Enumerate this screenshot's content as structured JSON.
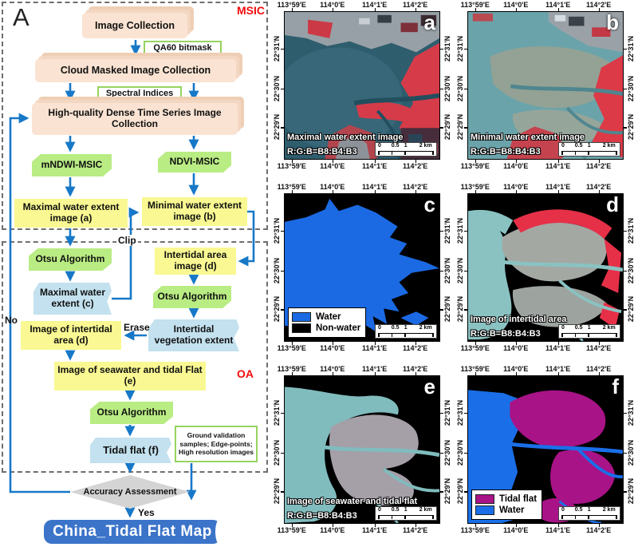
{
  "figure": {
    "panel_label": "A",
    "msic_label": "MSIC",
    "oa_label": "OA"
  },
  "flowchart": {
    "nodes": {
      "image_collection": "Image Collection",
      "qa60": "QA60 bitmask",
      "cloud_masked": "Cloud Masked Image Collection",
      "spectral_indices": "Spectral Indices",
      "high_quality": "High-quality Dense Time Series Image Collection",
      "mndwi": "mNDWI-MSIC",
      "ndvi": "NDVI-MSIC",
      "max_water_image": "Maximal water extent image (a)",
      "min_water_image": "Minimal water extent image (b)",
      "otsu1": "Otsu Algorithm",
      "intertidal_area_image": "Intertidal area image (d)",
      "max_water_extent": "Maximal water extent (c)",
      "otsu2": "Otsu Algorithm",
      "image_intertidal_area": "Image of intertidal area (d)",
      "intertidal_veg": "Intertidal vegetation extent",
      "seawater_tidalflat": "Image of seawater and tidal Flat (e)",
      "otsu3": "Otsu Algorithm",
      "tidal_flat": "Tidal flat (f)",
      "ground_validation": "Ground validation samples; Edge-points; High resolution images",
      "accuracy": "Accuracy Assessment",
      "final_map": "China_Tidal Flat Map"
    },
    "edge_labels": {
      "clip": "Clip",
      "erase": "Erase",
      "no": "No",
      "yes": "Yes"
    }
  },
  "axes": {
    "lon": [
      "113°59'E",
      "114°0'E",
      "114°1'E",
      "114°2'E"
    ],
    "lat": [
      "22°31'N",
      "22°30'N",
      "22°29'N"
    ]
  },
  "scalebar_labels": [
    "0",
    "0.5",
    "1",
    "2 km"
  ],
  "panels": [
    {
      "id": "a",
      "caption": "Maximal water extent image",
      "rgb": "R:G:B=B8:B4:B3",
      "legend": null
    },
    {
      "id": "b",
      "caption": "Minimal water extent image",
      "rgb": "R:G:B=B8:B4:B3",
      "legend": null
    },
    {
      "id": "c",
      "caption": null,
      "rgb": null,
      "legend": [
        {
          "label": "Water",
          "color": "#1b6ae4"
        },
        {
          "label": "Non-water",
          "color": "#000000"
        }
      ]
    },
    {
      "id": "d",
      "caption": "Image of intertidal area",
      "rgb": "R:G:B=B8:B4:B3",
      "legend": null
    },
    {
      "id": "e",
      "caption": "Image of seawater and tidal flat",
      "rgb": "R:G:B=B8:B4:B3",
      "legend": null
    },
    {
      "id": "f",
      "caption": null,
      "rgb": null,
      "legend": [
        {
          "label": "Tidal flat",
          "color": "#a81387"
        },
        {
          "label": "Water",
          "color": "#1a6fe8"
        }
      ]
    }
  ],
  "colors": {
    "arrow": "#1778c8",
    "pink_box": "#fae3d2",
    "green_box": "#b9ec83",
    "yellow_box": "#f9f892",
    "blue_wave_box": "#c3e1ee",
    "final_box": "#3b74c9",
    "diamond": "#d4d4d4",
    "red_label": "#f10c0c",
    "water_dark_teal": "#2e5d6e",
    "water_light_teal": "#6ba3aa",
    "tidal_flat_magenta": "#a81387",
    "water_mask_blue": "#1b6ae4",
    "vegetation_red": "#d63b49"
  }
}
